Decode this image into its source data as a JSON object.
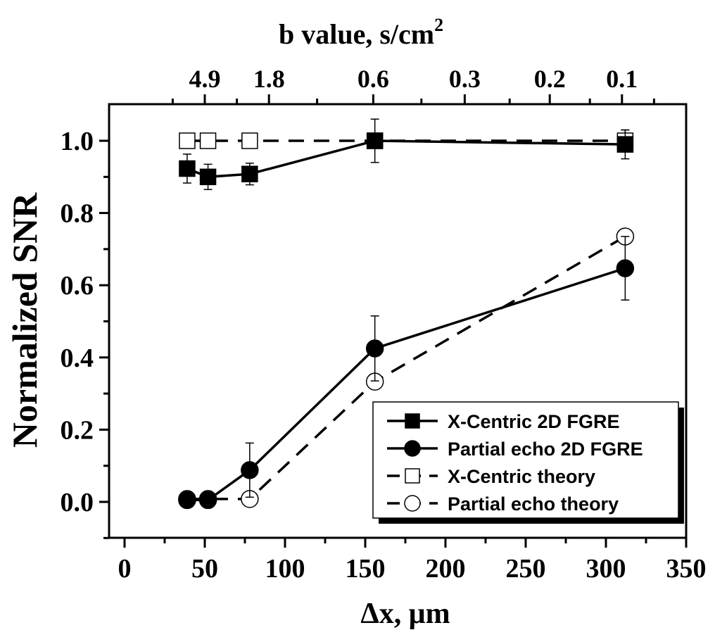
{
  "chart_data": {
    "type": "line",
    "xlabel": "Δx, μm",
    "ylabel": "Normalized SNR",
    "top_axis_title": "b value, s/cm",
    "top_axis_title_superscript": "2",
    "xlim": [
      0,
      350
    ],
    "ylim": [
      -0.1,
      1.1
    ],
    "x_ticks": [
      0,
      50,
      100,
      150,
      200,
      250,
      300,
      350
    ],
    "y_ticks": [
      0.0,
      0.2,
      0.4,
      0.6,
      0.8,
      1.0
    ],
    "x_tick_labels": [
      "0",
      "50",
      "100",
      "150",
      "200",
      "250",
      "300",
      "350"
    ],
    "y_tick_labels": [
      "0.0",
      "0.2",
      "0.4",
      "0.6",
      "0.8",
      "1.0"
    ],
    "top_ticks": [
      {
        "x": 50,
        "label": "4.9"
      },
      {
        "x": 90,
        "label": "1.8"
      },
      {
        "x": 155,
        "label": "0.6"
      },
      {
        "x": 212,
        "label": "0.3"
      },
      {
        "x": 265,
        "label": "0.2"
      },
      {
        "x": 310,
        "label": "0.1"
      }
    ],
    "series": [
      {
        "name": "X-Centric 2D FGRE",
        "marker": "filled-square",
        "line": "solid",
        "points": [
          {
            "x": 39,
            "y": 0.923,
            "err": 0.04
          },
          {
            "x": 52,
            "y": 0.9,
            "err": 0.035
          },
          {
            "x": 78,
            "y": 0.908,
            "err": 0.03
          },
          {
            "x": 156,
            "y": 1.0,
            "err": 0.0
          },
          {
            "x": 312,
            "y": 0.99,
            "err": 0.04
          }
        ]
      },
      {
        "name": "Partial echo 2D FGRE",
        "marker": "filled-circle",
        "line": "solid",
        "points": [
          {
            "x": 39,
            "y": 0.005,
            "err": 0.0
          },
          {
            "x": 52,
            "y": 0.005,
            "err": 0.0
          },
          {
            "x": 78,
            "y": 0.088,
            "err": 0.075
          },
          {
            "x": 156,
            "y": 0.425,
            "err": 0.09
          },
          {
            "x": 312,
            "y": 0.647,
            "err": 0.088
          }
        ]
      },
      {
        "name": "X-Centric theory",
        "marker": "open-square",
        "line": "dashed",
        "points": [
          {
            "x": 39,
            "y": 1.0,
            "err": 0.0
          },
          {
            "x": 52,
            "y": 1.0,
            "err": 0.0
          },
          {
            "x": 78,
            "y": 1.0,
            "err": 0.0
          },
          {
            "x": 156,
            "y": 1.0,
            "err": 0.06
          },
          {
            "x": 312,
            "y": 1.0,
            "err": 0.03
          }
        ]
      },
      {
        "name": "Partial echo theory",
        "marker": "open-circle",
        "line": "dashed",
        "points": [
          {
            "x": 39,
            "y": 0.008,
            "err": 0.0
          },
          {
            "x": 52,
            "y": 0.008,
            "err": 0.0
          },
          {
            "x": 78,
            "y": 0.008,
            "err": 0.0
          },
          {
            "x": 156,
            "y": 0.333,
            "err": 0.0
          },
          {
            "x": 312,
            "y": 0.735,
            "err": 0.0
          }
        ]
      }
    ],
    "legend": {
      "placement": "bottom-right",
      "entries": [
        "X-Centric 2D FGRE",
        "Partial echo 2D FGRE",
        "X-Centric theory",
        "Partial echo theory"
      ]
    },
    "grid": false
  }
}
